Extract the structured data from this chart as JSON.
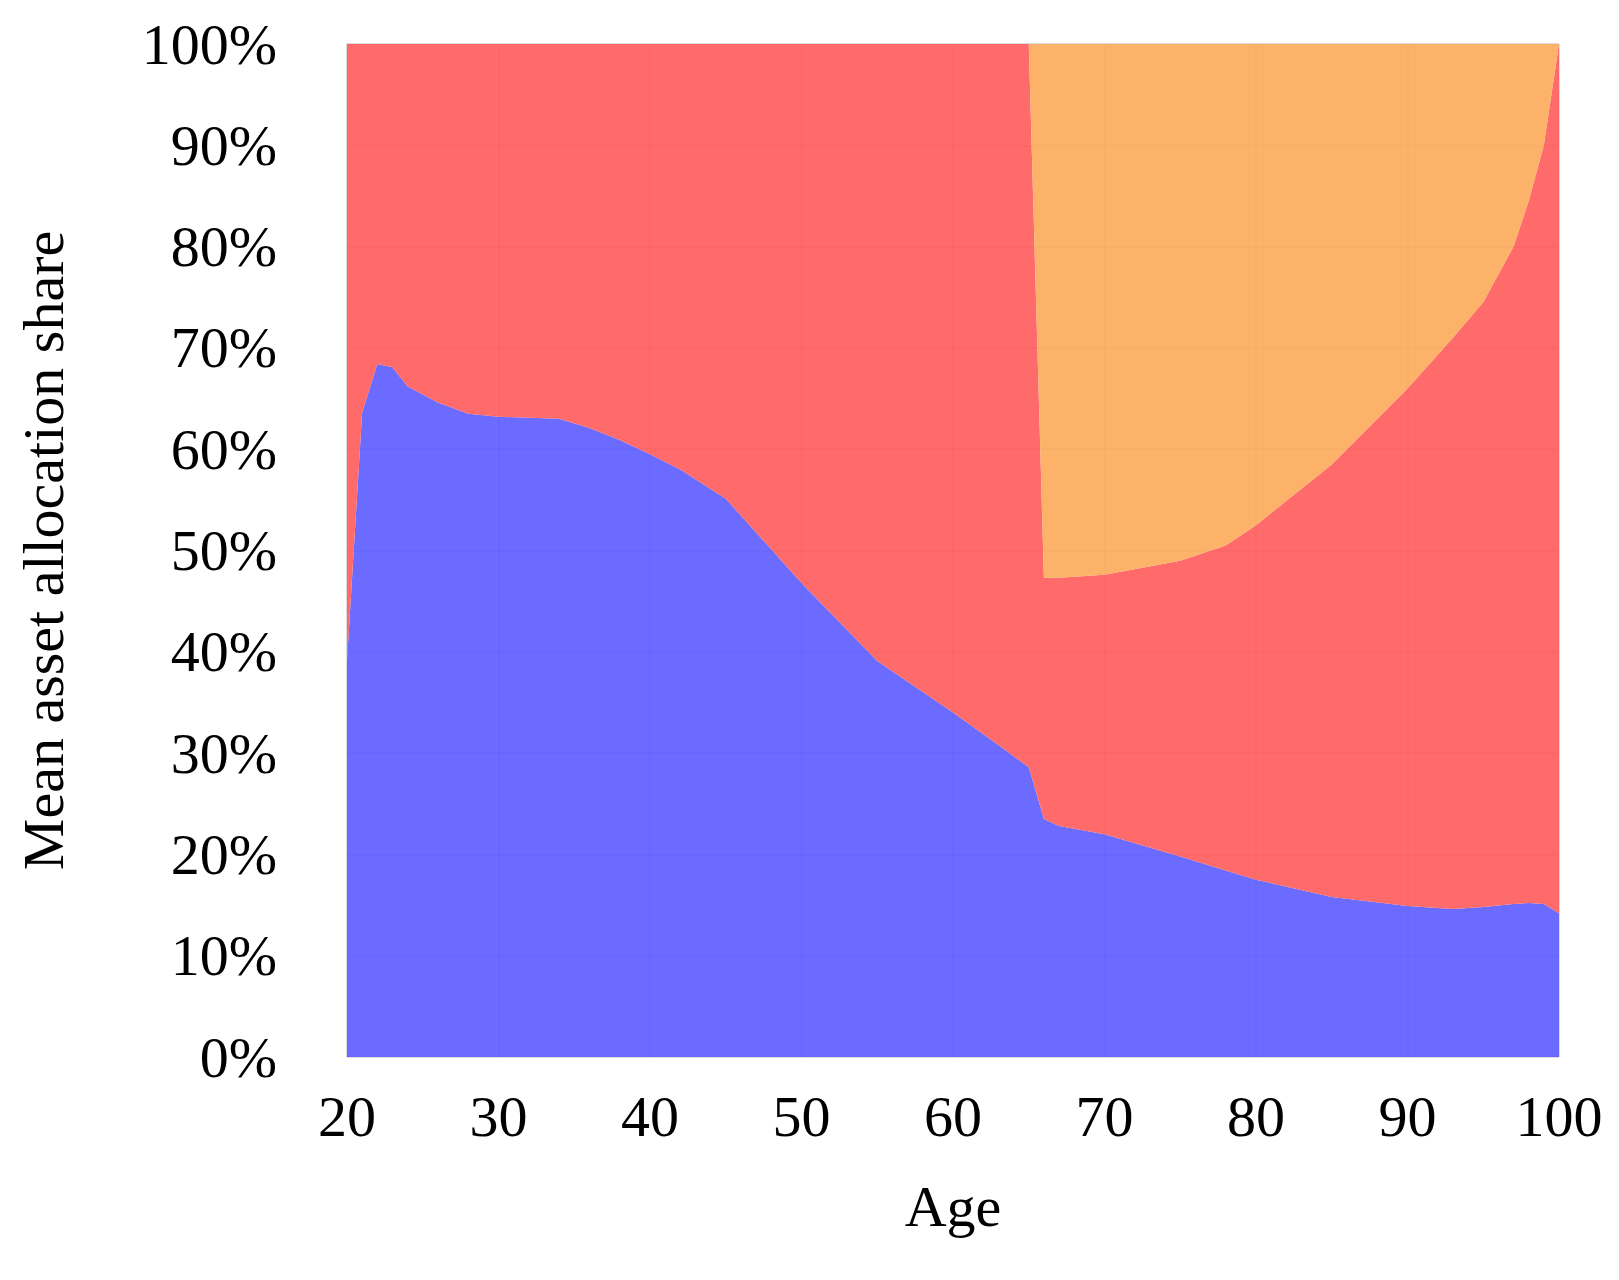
{
  "chart_data": {
    "type": "area",
    "stacked": true,
    "xlabel": "Age",
    "ylabel": "Mean asset allocation share",
    "x": [
      20,
      21,
      22,
      23,
      24,
      26,
      28,
      30,
      34,
      36,
      38,
      40,
      42,
      45,
      50,
      55,
      60,
      63,
      65,
      66,
      67,
      70,
      75,
      78,
      80,
      85,
      90,
      93,
      95,
      97,
      98,
      99,
      100
    ],
    "series": [
      {
        "color": "#5b5bff",
        "values": [
          39.1,
          63.6,
          68.4,
          68.1,
          66.2,
          64.6,
          63.5,
          63.2,
          63.0,
          62.1,
          60.9,
          59.5,
          58.0,
          55.1,
          46.8,
          39.1,
          34.0,
          30.8,
          28.6,
          23.5,
          22.8,
          22.0,
          19.8,
          18.4,
          17.5,
          15.8,
          14.9,
          14.6,
          14.8,
          15.1,
          15.2,
          15.1,
          14.2
        ]
      },
      {
        "color": "#ff5b5b",
        "values": [
          60.9,
          36.4,
          31.6,
          31.9,
          33.8,
          35.4,
          36.5,
          36.8,
          37.0,
          37.9,
          39.1,
          40.5,
          42.0,
          44.9,
          53.2,
          60.9,
          66.0,
          69.2,
          71.4,
          23.8,
          24.5,
          25.6,
          29.2,
          32.1,
          35.0,
          42.7,
          51.1,
          56.4,
          59.7,
          64.9,
          69.3,
          74.9,
          85.8
        ]
      },
      {
        "color": "#fdaa5a",
        "values": [
          0,
          0,
          0,
          0,
          0,
          0,
          0,
          0,
          0,
          0,
          0,
          0,
          0,
          0,
          0,
          0,
          0,
          0,
          0,
          52.7,
          52.7,
          52.4,
          51.0,
          49.5,
          47.5,
          41.5,
          34.0,
          29.0,
          25.5,
          20.0,
          15.5,
          10.0,
          0
        ]
      }
    ],
    "xlim": [
      20,
      100
    ],
    "xticks": [
      20,
      30,
      40,
      50,
      60,
      70,
      80,
      90,
      100
    ],
    "ylim": [
      0,
      100
    ],
    "yticks": [
      {
        "value": 0,
        "label": "0%"
      },
      {
        "value": 10,
        "label": "10%"
      },
      {
        "value": 20,
        "label": "20%"
      },
      {
        "value": 30,
        "label": "30%"
      },
      {
        "value": 40,
        "label": "40%"
      },
      {
        "value": 50,
        "label": "50%"
      },
      {
        "value": 60,
        "label": "60%"
      },
      {
        "value": 70,
        "label": "70%"
      },
      {
        "value": 80,
        "label": "80%"
      },
      {
        "value": 90,
        "label": "90%"
      },
      {
        "value": 100,
        "label": "100%"
      }
    ],
    "grid": true,
    "marker": "none"
  }
}
